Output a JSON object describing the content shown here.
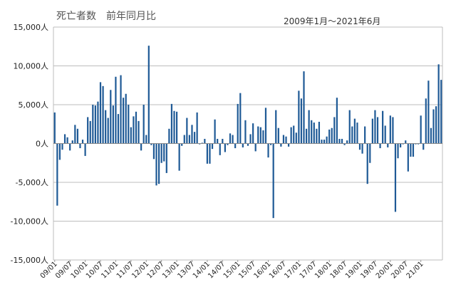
{
  "chart_data": {
    "type": "bar",
    "title": "死亡者数　前年同月比",
    "subtitle": "2009年1月～2021年6月",
    "xlabel": "",
    "ylabel": "",
    "ylim": [
      -15000,
      15000
    ],
    "yticks": [
      15000,
      10000,
      5000,
      0,
      -5000,
      -10000,
      -15000
    ],
    "ytick_labels": [
      "15,000人",
      "10,000人",
      "5,000人",
      "0人",
      "-5,000人",
      "-10,000人",
      "-15,000人"
    ],
    "grid": true,
    "color": "#1f5a96",
    "xtick_labels": [
      "09/01",
      "09/07",
      "10/01",
      "10/07",
      "11/01",
      "11/07",
      "12/01",
      "12/07",
      "13/01",
      "13/07",
      "14/01",
      "14/07",
      "15/01",
      "15/07",
      "16/01",
      "16/07",
      "17/01",
      "17/07",
      "18/01",
      "18/07",
      "19/01",
      "19/07",
      "20/01",
      "20/07",
      "21/01"
    ],
    "series": [
      {
        "values": [
          4000,
          -8000,
          -2100,
          -800,
          1200,
          800,
          -900,
          400,
          2400,
          1900,
          -600,
          500,
          -1600,
          3400,
          2900,
          5000,
          4900,
          5400,
          7900,
          7400,
          4300,
          3300,
          6900,
          4900,
          8600,
          3800,
          8800,
          5900,
          6400,
          5000,
          2100,
          3500,
          4100,
          2900,
          -900,
          5000,
          1100,
          12600,
          -200,
          -2000,
          -5400,
          -5200,
          -2500,
          -2300,
          -3800,
          1900,
          5100,
          4200,
          4100,
          -3500,
          -300,
          1100,
          3300,
          1100,
          2400,
          1500,
          4000,
          -100,
          100,
          600,
          -2600,
          -2600,
          -700,
          3100,
          600,
          -1500,
          600,
          -1100,
          -200,
          1300,
          1100,
          -600,
          5100,
          6500,
          -500,
          3000,
          -300,
          1200,
          2600,
          -1000,
          2200,
          2100,
          1700,
          4600,
          -1800,
          -200,
          -9600,
          4300,
          2000,
          -400,
          1100,
          900,
          -400,
          2100,
          2300,
          1400,
          6800,
          5800,
          9300,
          1900,
          4300,
          3000,
          2700,
          1900,
          2800,
          500,
          500,
          900,
          1800,
          2000,
          3400,
          5900,
          600,
          600,
          -200,
          400,
          4300,
          2200,
          3200,
          2700,
          -800,
          -1300,
          2200,
          -5200,
          -2500,
          3200,
          4300,
          3400,
          -600,
          4200,
          2300,
          -500,
          3600,
          3400,
          -8800,
          -1900,
          -500,
          -100,
          400,
          -3600,
          -1700,
          -1700,
          -100,
          -100,
          3600,
          -800,
          5800,
          8100,
          2000,
          4400,
          4800,
          10200,
          8200
        ]
      }
    ]
  }
}
